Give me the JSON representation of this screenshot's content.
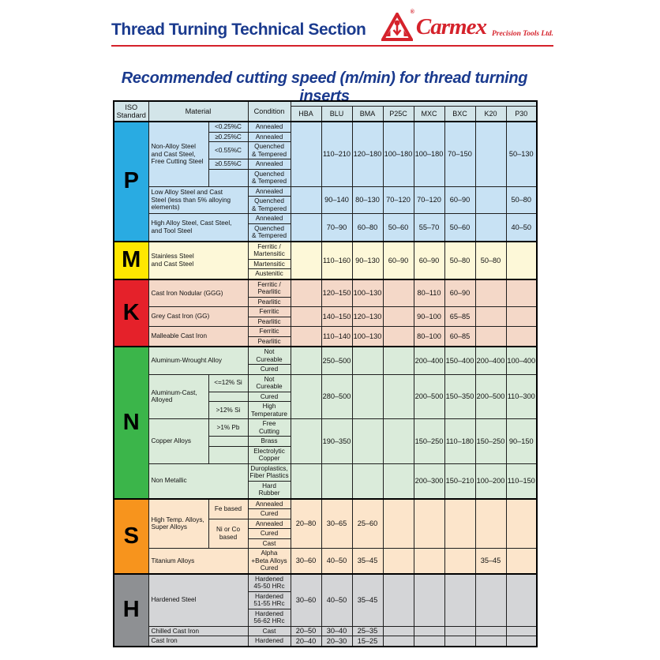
{
  "header": {
    "title": "Thread Turning Technical Section",
    "logo": {
      "brand": "Carmex",
      "suffix": "Precision Tools Ltd.",
      "registered": "®"
    }
  },
  "main": {
    "title": "Recommended cutting speed (m/min) for thread turning inserts"
  },
  "colors": {
    "navy": "#1a3a8e",
    "red": "#d5222b",
    "table_border": "#1f1f1f",
    "header_bg": "#d3e5e9"
  },
  "table": {
    "corner": {
      "iso": "ISO\nStandard",
      "material": "Material",
      "condition": "Condition"
    },
    "grade_columns": [
      "HBA",
      "BLU",
      "BMA",
      "P25C",
      "MXC",
      "BXC",
      "K20",
      "P30"
    ],
    "sections": [
      {
        "iso": "P",
        "letter_bg": "#29abe2",
        "row_bg": "#c8e2f4",
        "groups": [
          {
            "material": "Non-Alloy Steel\nand Cast Steel,\nFree Cutting Steel",
            "has_sub": true,
            "rows": [
              {
                "sub": {
                  "label": "<0.25%C",
                  "span": 1
                },
                "condition": "Annealed"
              },
              {
                "sub": {
                  "label": "≥0.25%C",
                  "span": 1
                },
                "condition": "Annealed"
              },
              {
                "sub": {
                  "label": "<0.55%C",
                  "span": 1
                },
                "condition": "Quenched\n& Tempered"
              },
              {
                "sub": {
                  "label": "≥0.55%C",
                  "span": 1
                },
                "condition": "Annealed"
              },
              {
                "sub": {
                  "label": "",
                  "span": 1
                },
                "condition": "Quenched\n& Tempered"
              }
            ],
            "speeds": [
              "",
              "110–210",
              "120–180",
              "100–180",
              "100–180",
              "70–150",
              "",
              "50–130"
            ]
          },
          {
            "material": "Low Alloy Steel and Cast\nSteel (less than 5% alloying\nelements)",
            "has_sub": false,
            "rows": [
              {
                "condition": "Annealed"
              },
              {
                "condition": "Quenched\n& Tempered"
              }
            ],
            "speeds": [
              "",
              "90–140",
              "80–130",
              "70–120",
              "70–120",
              "60–90",
              "",
              "50–80"
            ]
          },
          {
            "material": "High Alloy Steel, Cast Steel,\nand Tool Steel",
            "has_sub": false,
            "rows": [
              {
                "condition": "Annealed"
              },
              {
                "condition": "Quenched\n& Tempered"
              }
            ],
            "speeds": [
              "",
              "70–90",
              "60–80",
              "50–60",
              "55–70",
              "50–60",
              "",
              "40–50"
            ]
          }
        ]
      },
      {
        "iso": "M",
        "letter_bg": "#ffe700",
        "row_bg": "#fdf8d8",
        "groups": [
          {
            "material": "Stainless Steel\nand Cast Steel",
            "has_sub": false,
            "rows": [
              {
                "condition": "Ferritic /\nMartensitic"
              },
              {
                "condition": "Martensitic"
              },
              {
                "condition": "Austenitic"
              }
            ],
            "speeds": [
              "",
              "110–160",
              "90–130",
              "60–90",
              "60–90",
              "50–80",
              "50–80",
              ""
            ]
          }
        ]
      },
      {
        "iso": "K",
        "letter_bg": "#e5212a",
        "row_bg": "#f4d8c8",
        "groups": [
          {
            "material": "Cast Iron Nodular (GGG)",
            "has_sub": false,
            "rows": [
              {
                "condition": "Ferritic /\nPearlitic"
              },
              {
                "condition": "Pearlitic"
              }
            ],
            "speeds": [
              "",
              "120–150",
              "100–130",
              "",
              "80–110",
              "60–90",
              "",
              ""
            ]
          },
          {
            "material": "Grey Cast Iron (GG)",
            "has_sub": false,
            "rows": [
              {
                "condition": "Ferritic"
              },
              {
                "condition": "Pearlitic"
              }
            ],
            "speeds": [
              "",
              "140–150",
              "120–130",
              "",
              "90–100",
              "65–85",
              "",
              ""
            ]
          },
          {
            "material": "Malleable Cast Iron",
            "has_sub": false,
            "rows": [
              {
                "condition": "Ferritic"
              },
              {
                "condition": "Pearlitic"
              }
            ],
            "speeds": [
              "",
              "110–140",
              "100–130",
              "",
              "80–100",
              "60–85",
              "",
              ""
            ]
          }
        ]
      },
      {
        "iso": "N",
        "letter_bg": "#3bb54a",
        "row_bg": "#daebda",
        "groups": [
          {
            "material": "Aluminum-Wrought Alloy",
            "has_sub": false,
            "rows": [
              {
                "condition": "Not\nCureable"
              },
              {
                "condition": "Cured"
              }
            ],
            "speeds": [
              "",
              "250–500",
              "",
              "",
              "200–400",
              "150–400",
              "200–400",
              "100–400"
            ]
          },
          {
            "material": "Aluminum-Cast,\nAlloyed",
            "has_sub": true,
            "rows": [
              {
                "sub": {
                  "label": "<=12% Si",
                  "span": 1
                },
                "condition": "Not\nCureable"
              },
              {
                "sub": {
                  "label": "",
                  "span": 1
                },
                "condition": "Cured"
              },
              {
                "sub": {
                  "label": ">12% Si",
                  "span": 1
                },
                "condition": "High\nTemperature"
              }
            ],
            "speeds": [
              "",
              "280–500",
              "",
              "",
              "200–500",
              "150–350",
              "200–500",
              "110–300"
            ]
          },
          {
            "material": "Copper Alloys",
            "has_sub": true,
            "rows": [
              {
                "sub": {
                  "label": ">1% Pb",
                  "span": 1
                },
                "condition": "Free\nCutting"
              },
              {
                "sub": {
                  "label": "",
                  "span": 1
                },
                "condition": "Brass"
              },
              {
                "sub": {
                  "label": "",
                  "span": 1
                },
                "condition": "Electrolytic\nCopper"
              }
            ],
            "speeds": [
              "",
              "190–350",
              "",
              "",
              "150–250",
              "110–180",
              "150–250",
              "90–150"
            ]
          },
          {
            "material": "Non Metallic",
            "has_sub": false,
            "rows": [
              {
                "condition": "Duroplastics,\nFiber Plastics"
              },
              {
                "condition": "Hard\nRubber"
              }
            ],
            "speeds": [
              "",
              "",
              "",
              "",
              "200–300",
              "150–210",
              "100–200",
              "110–150"
            ]
          }
        ]
      },
      {
        "iso": "S",
        "letter_bg": "#f7941d",
        "row_bg": "#fce5cb",
        "groups": [
          {
            "material": "High Temp. Alloys,\nSuper Alloys",
            "has_sub": true,
            "rows": [
              {
                "sub": {
                  "label": "Fe based",
                  "span": 2
                },
                "condition": "Annealed"
              },
              {
                "condition": "Cured"
              },
              {
                "sub": {
                  "label": "Ni or Co\nbased",
                  "span": 3
                },
                "condition": "Annealed"
              },
              {
                "condition": "Cured"
              },
              {
                "condition": "Cast"
              }
            ],
            "speeds": [
              "20–80",
              "30–65",
              "25–60",
              "",
              "",
              "",
              "",
              ""
            ]
          },
          {
            "material": "Titanium Alloys",
            "has_sub": false,
            "rows": [
              {
                "condition": "Alpha\n+Beta Alloys\nCured"
              }
            ],
            "speeds": [
              "30–60",
              "40–50",
              "35–45",
              "",
              "",
              "",
              "35–45",
              ""
            ]
          }
        ]
      },
      {
        "iso": "H",
        "letter_bg": "#8e9093",
        "row_bg": "#d4d5d7",
        "groups": [
          {
            "material": "Hardened Steel",
            "has_sub": false,
            "rows": [
              {
                "condition": "Hardened\n45-50 HRc"
              },
              {
                "condition": "Hardened\n51-55 HRc"
              },
              {
                "condition": "Hardened\n56-62 HRc"
              }
            ],
            "speeds": [
              "30–60",
              "40–50",
              "35–45",
              "",
              "",
              "",
              "",
              ""
            ]
          },
          {
            "material": "Chilled Cast Iron",
            "has_sub": false,
            "rows": [
              {
                "condition": "Cast"
              }
            ],
            "speeds": [
              "20–50",
              "30–40",
              "25–35",
              "",
              "",
              "",
              "",
              ""
            ]
          },
          {
            "material": "Cast Iron",
            "has_sub": false,
            "rows": [
              {
                "condition": "Hardened"
              }
            ],
            "speeds": [
              "20–40",
              "20–30",
              "15–25",
              "",
              "",
              "",
              "",
              ""
            ]
          }
        ]
      }
    ]
  }
}
